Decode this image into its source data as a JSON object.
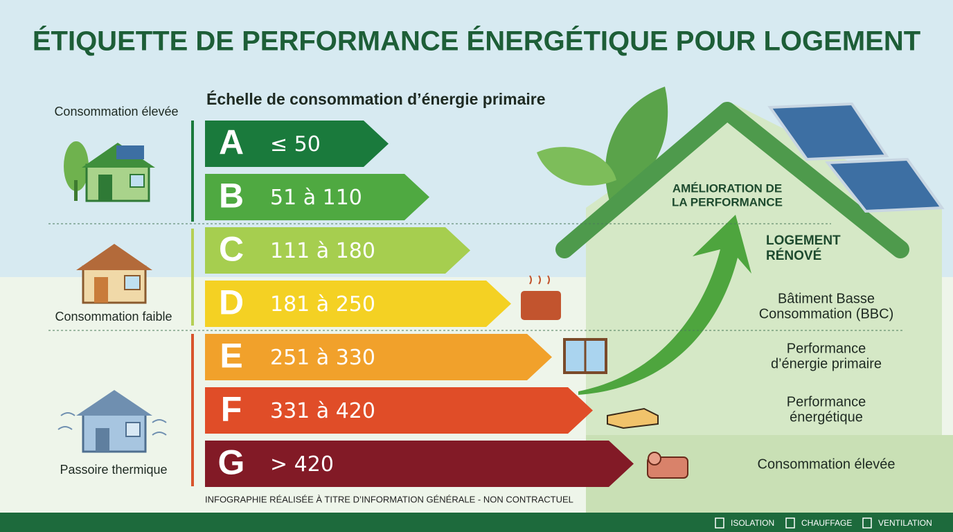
{
  "title": "ÉTIQUETTE DE PERFORMANCE ÉNERGÉTIQUE POUR LOGEMENT",
  "subtitle": "Échelle de consommation d’énergie primaire",
  "classes": [
    {
      "letter": "A",
      "range": "≤ 50",
      "color": "#1a7a3c"
    },
    {
      "letter": "B",
      "range": "51 à 110",
      "color": "#4fa941"
    },
    {
      "letter": "C",
      "range": "111 à 180",
      "color": "#a6ce4f"
    },
    {
      "letter": "D",
      "range": "181 à 250",
      "color": "#f4d123"
    },
    {
      "letter": "E",
      "range": "251 à 330",
      "color": "#f1a12b"
    },
    {
      "letter": "F",
      "range": "331 à 420",
      "color": "#e04d28"
    },
    {
      "letter": "G",
      "range": "> 420",
      "color": "#821a26"
    }
  ],
  "left_labels": [
    "Consommation élevée",
    "Consommation faible",
    "Passoire thermique"
  ],
  "improvement": [
    "AMÉLIORATION DE",
    "LA PERFORMANCE"
  ],
  "renovated": [
    "LOGEMENT",
    "RÉNOVÉ"
  ],
  "right_labels": [
    [
      "Bâtiment Basse",
      "Consommation (BBC)"
    ],
    [
      "Performance",
      "d’énergie primaire"
    ],
    [
      "Performance",
      "énergétique"
    ],
    [
      "Consommation élevée"
    ]
  ],
  "footnote": "INFOGRAPHIE RÉALISÉE À TITRE D’INFORMATION GÉNÉRALE - NON CONTRACTUEL",
  "legend": [
    "ISOLATION",
    "CHAUFFAGE",
    "VENTILATION"
  ]
}
